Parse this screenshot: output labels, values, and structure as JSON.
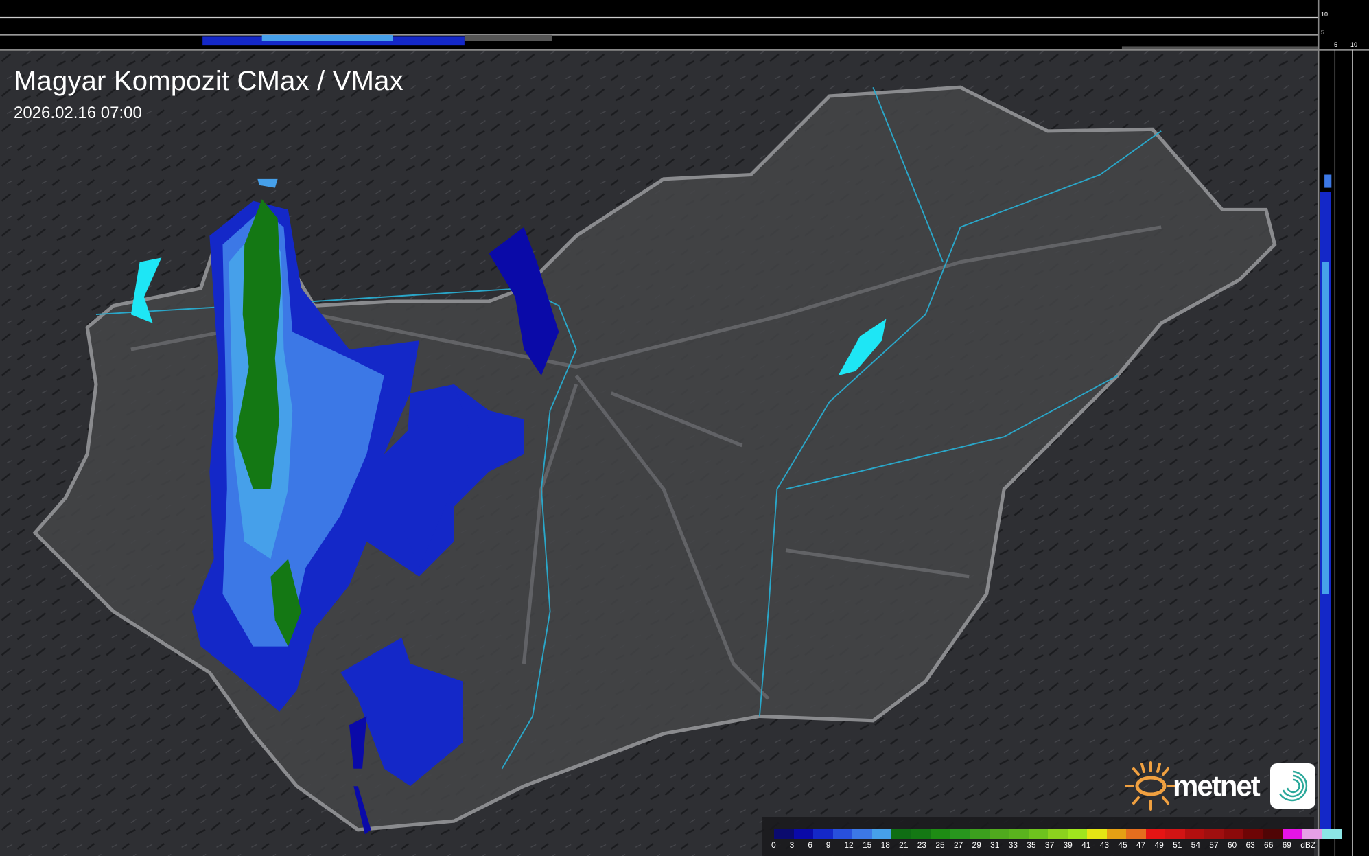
{
  "header": {
    "title": "Magyar Kompozit CMax / VMax",
    "timestamp": "2026.02.16 07:00"
  },
  "profile_panels": {
    "top_axis_ticks": [
      "10",
      "5"
    ],
    "side_axis_ticks": [
      "5",
      "10"
    ]
  },
  "legend": {
    "unit": "dBZ",
    "labels": [
      "0",
      "3",
      "6",
      "9",
      "12",
      "15",
      "18",
      "21",
      "23",
      "25",
      "27",
      "29",
      "31",
      "33",
      "35",
      "37",
      "39",
      "41",
      "43",
      "45",
      "47",
      "49",
      "51",
      "54",
      "57",
      "60",
      "63",
      "66",
      "69"
    ],
    "colors": [
      "#0b0b6e",
      "#0a0aa8",
      "#1428c8",
      "#2850dc",
      "#3c78e6",
      "#46a0ea",
      "#0f6e14",
      "#147814",
      "#1e8c14",
      "#28961e",
      "#3ca01e",
      "#50aa1e",
      "#5ab41e",
      "#6ec31e",
      "#8cd21e",
      "#a0e61e",
      "#e6e614",
      "#e6a014",
      "#e66e1e",
      "#e61414",
      "#d21414",
      "#b40f0f",
      "#a00f0f",
      "#8c0a0a",
      "#6e0505",
      "#500505",
      "#e614e6",
      "#e6a0e6",
      "#8ce6e6"
    ]
  },
  "branding": {
    "logo_text": "metnet",
    "sun_color": "#f0a040",
    "icon_color": "#2aa89a"
  }
}
